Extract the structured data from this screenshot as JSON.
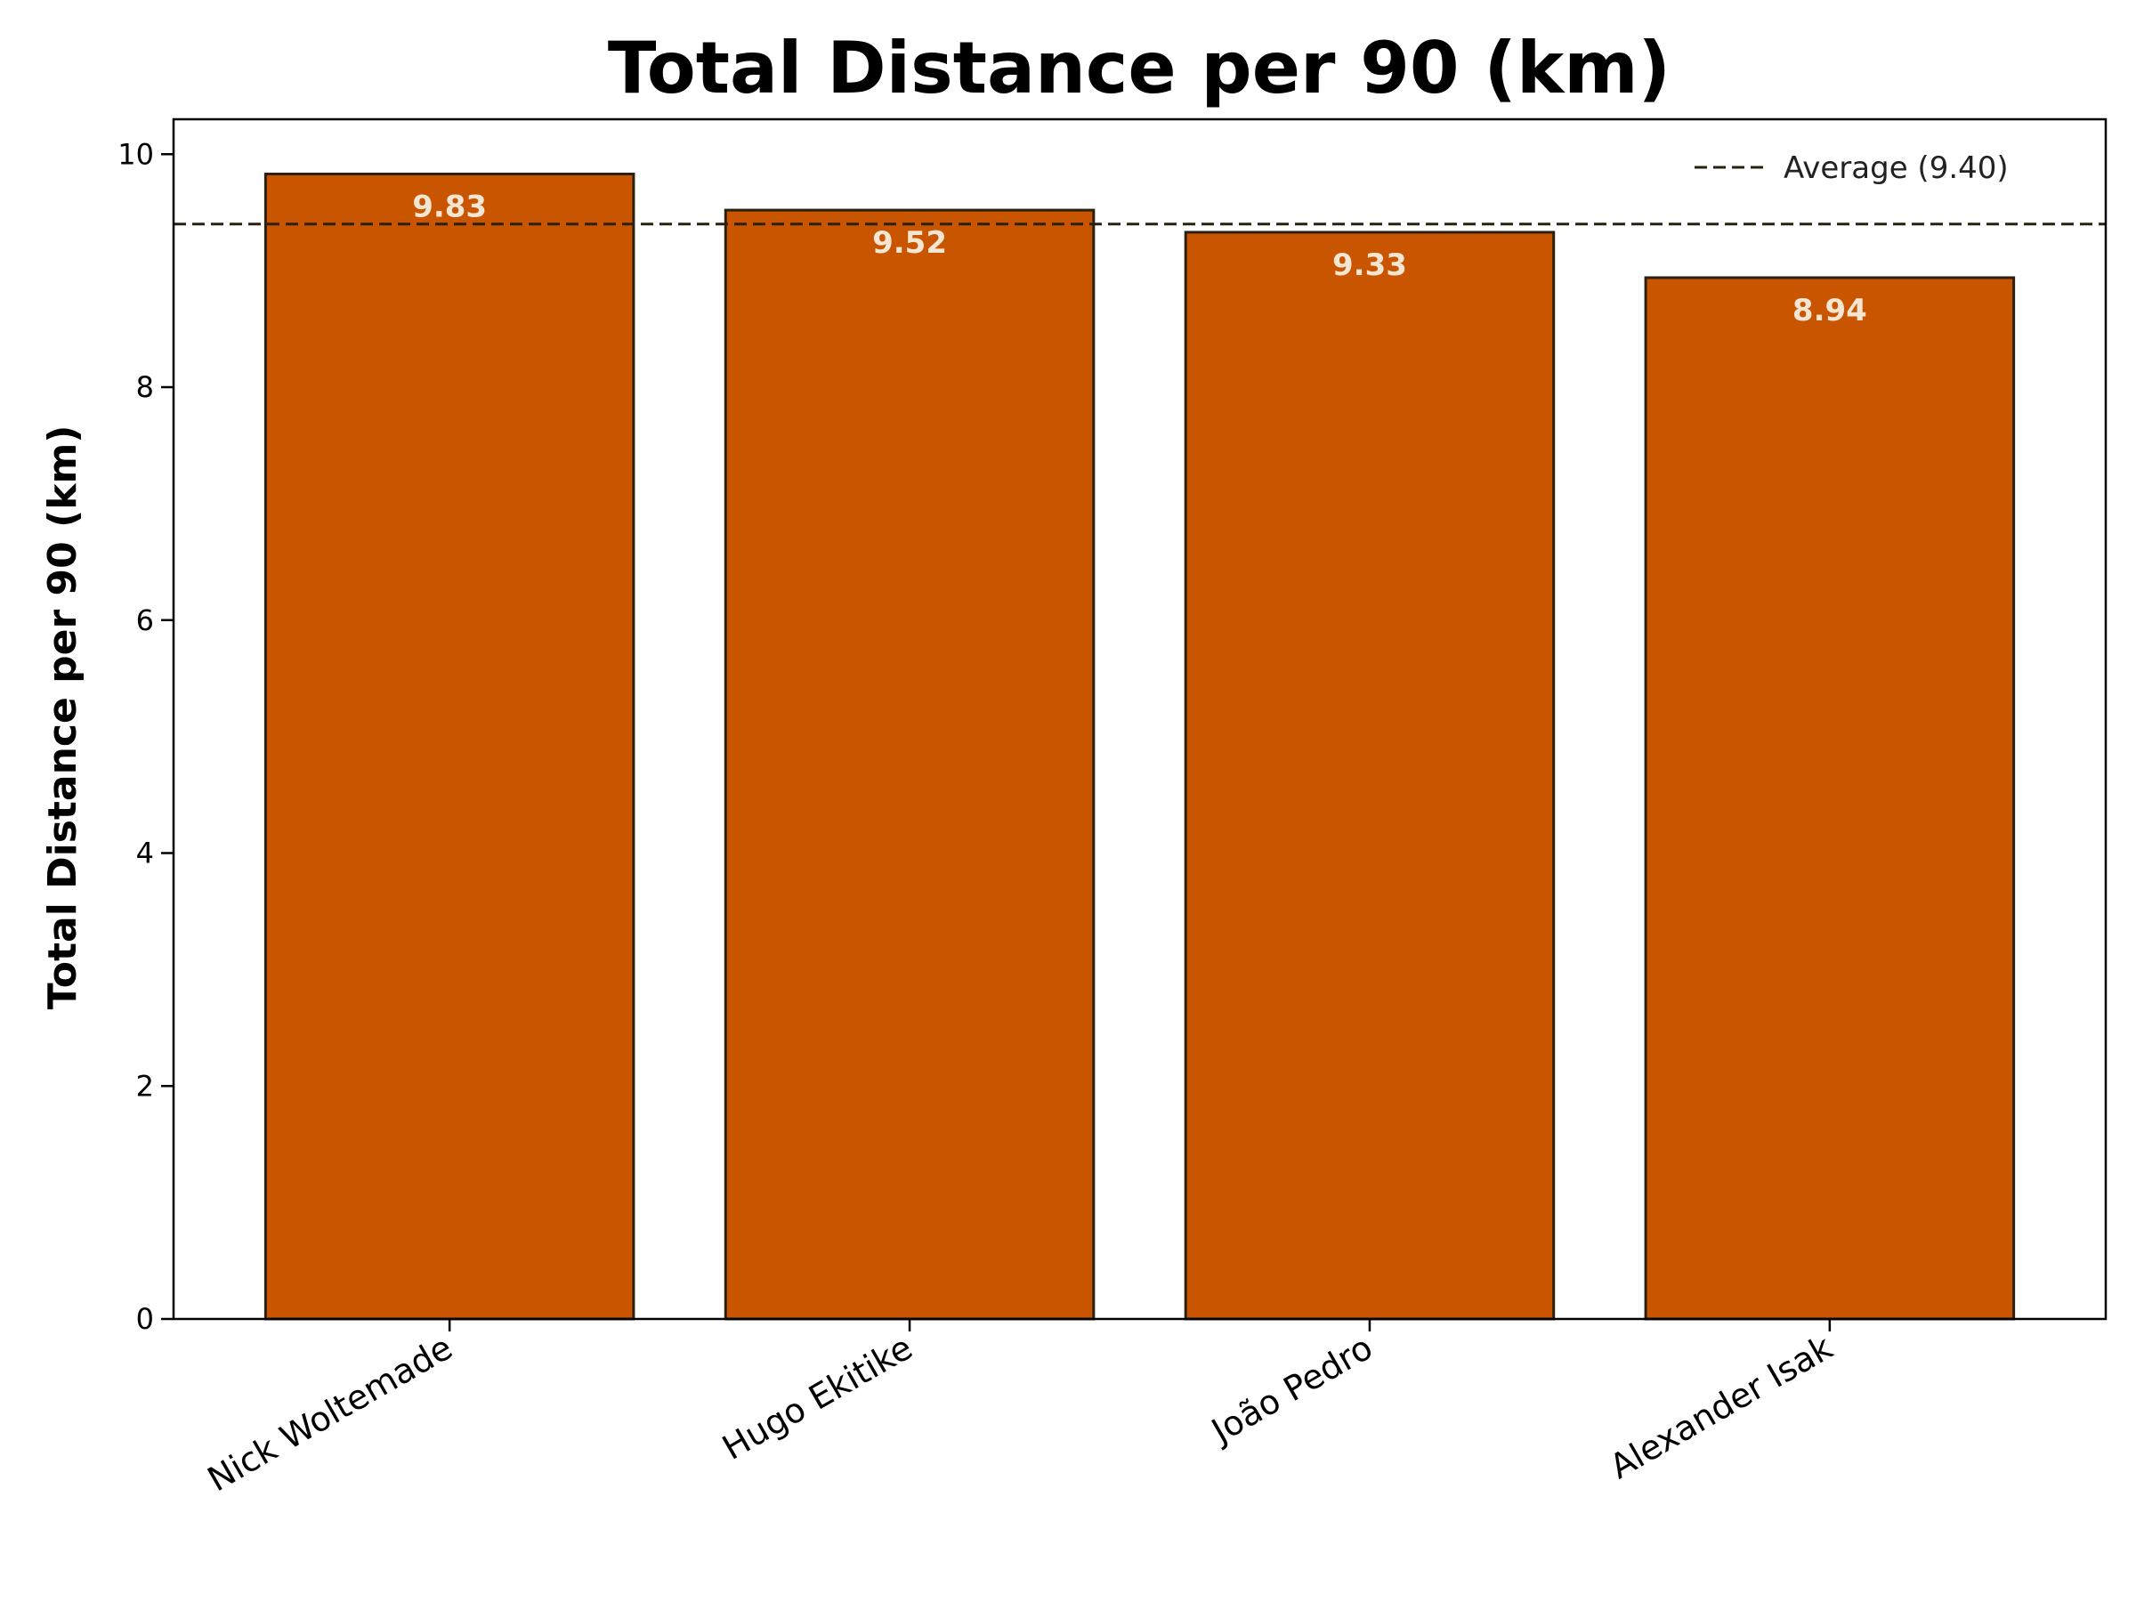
{
  "chart_data": {
    "type": "bar",
    "title": "Total Distance per 90 (km)",
    "xlabel": "",
    "ylabel": "Total Distance per 90 (km)",
    "categories": [
      "Nick Woltemade",
      "Hugo Ekitike",
      "João Pedro",
      "Alexander Isak"
    ],
    "values": [
      9.83,
      9.52,
      9.33,
      8.94
    ],
    "value_labels": [
      "9.83",
      "9.52",
      "9.33",
      "8.94"
    ],
    "ylim": [
      0,
      10.3
    ],
    "yticks": [
      0,
      2,
      4,
      6,
      8,
      10
    ],
    "ytick_labels": [
      "0",
      "2",
      "4",
      "6",
      "8",
      "10"
    ],
    "reference_line": {
      "value": 9.4,
      "label": "Average (9.40)",
      "style": "dashed"
    },
    "legend_position": "top-right",
    "grid": false,
    "colors": {
      "bar": "#c95500",
      "bar_edge": "#2b2010",
      "average_line": "#2b2010",
      "bar_label": "#f5e6d3"
    }
  }
}
